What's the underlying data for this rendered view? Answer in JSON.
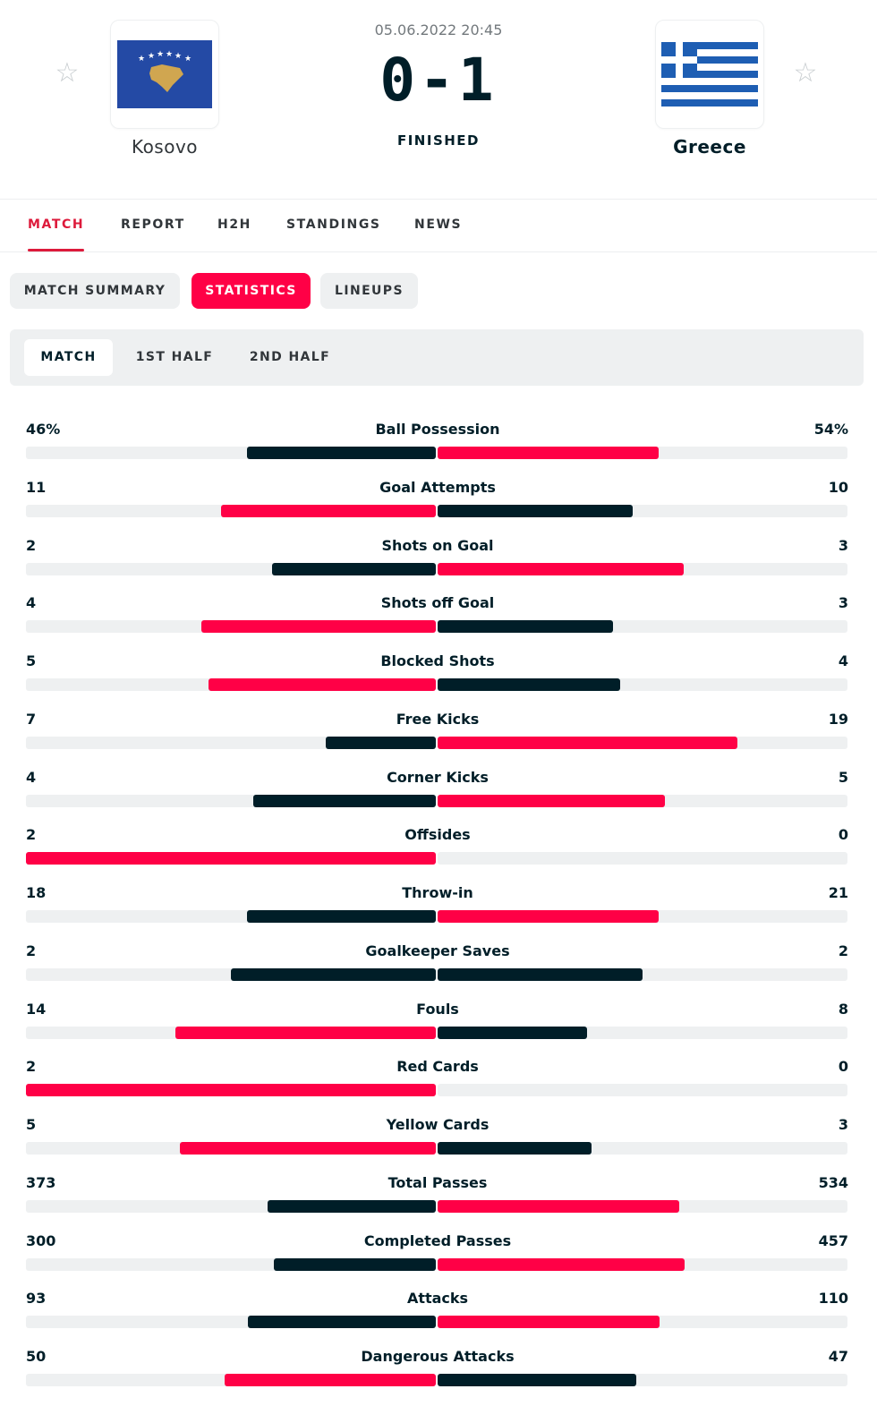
{
  "match": {
    "date": "05.06.2022 20:45",
    "score": "0-1",
    "status": "FINISHED",
    "home_team": "Kosovo",
    "away_team": "Greece"
  },
  "icons": {
    "favorite": "star-outline-icon",
    "home_flag": "kosovo-flag-icon",
    "away_flag": "greece-flag-icon"
  },
  "colors": {
    "accent": "#ff0046",
    "dark": "#001e28",
    "track": "#eef0f1"
  },
  "main_tabs": [
    {
      "label": "MATCH",
      "active": true
    },
    {
      "label": "REPORT",
      "active": false
    },
    {
      "label": "H2H",
      "active": false
    },
    {
      "label": "STANDINGS",
      "active": false
    },
    {
      "label": "NEWS",
      "active": false
    }
  ],
  "sub_tabs": [
    {
      "label": "MATCH SUMMARY",
      "active": false
    },
    {
      "label": "STATISTICS",
      "active": true
    },
    {
      "label": "LINEUPS",
      "active": false
    }
  ],
  "period_tabs": [
    {
      "label": "MATCH",
      "active": true
    },
    {
      "label": "1ST HALF",
      "active": false
    },
    {
      "label": "2ND HALF",
      "active": false
    }
  ],
  "stats": [
    {
      "category": "Ball Possession",
      "home": "46%",
      "away": "54%",
      "home_value": 46,
      "away_value": 54
    },
    {
      "category": "Goal Attempts",
      "home": "11",
      "away": "10",
      "home_value": 11,
      "away_value": 10
    },
    {
      "category": "Shots on Goal",
      "home": "2",
      "away": "3",
      "home_value": 2,
      "away_value": 3
    },
    {
      "category": "Shots off Goal",
      "home": "4",
      "away": "3",
      "home_value": 4,
      "away_value": 3
    },
    {
      "category": "Blocked Shots",
      "home": "5",
      "away": "4",
      "home_value": 5,
      "away_value": 4
    },
    {
      "category": "Free Kicks",
      "home": "7",
      "away": "19",
      "home_value": 7,
      "away_value": 19
    },
    {
      "category": "Corner Kicks",
      "home": "4",
      "away": "5",
      "home_value": 4,
      "away_value": 5
    },
    {
      "category": "Offsides",
      "home": "2",
      "away": "0",
      "home_value": 2,
      "away_value": 0
    },
    {
      "category": "Throw-in",
      "home": "18",
      "away": "21",
      "home_value": 18,
      "away_value": 21
    },
    {
      "category": "Goalkeeper Saves",
      "home": "2",
      "away": "2",
      "home_value": 2,
      "away_value": 2
    },
    {
      "category": "Fouls",
      "home": "14",
      "away": "8",
      "home_value": 14,
      "away_value": 8
    },
    {
      "category": "Red Cards",
      "home": "2",
      "away": "0",
      "home_value": 2,
      "away_value": 0
    },
    {
      "category": "Yellow Cards",
      "home": "5",
      "away": "3",
      "home_value": 5,
      "away_value": 3
    },
    {
      "category": "Total Passes",
      "home": "373",
      "away": "534",
      "home_value": 373,
      "away_value": 534
    },
    {
      "category": "Completed Passes",
      "home": "300",
      "away": "457",
      "home_value": 300,
      "away_value": 457
    },
    {
      "category": "Attacks",
      "home": "93",
      "away": "110",
      "home_value": 93,
      "away_value": 110
    },
    {
      "category": "Dangerous Attacks",
      "home": "50",
      "away": "47",
      "home_value": 50,
      "away_value": 47
    }
  ]
}
